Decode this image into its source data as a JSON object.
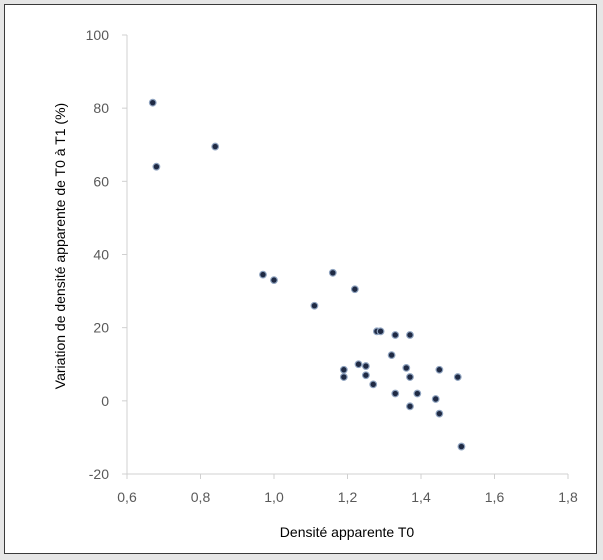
{
  "chart_data": {
    "type": "scatter",
    "title": "",
    "xlabel": "Densité apparente T0",
    "ylabel": "Variation de densité apparente de T0 à T1 (%)",
    "xlim": [
      0.6,
      1.8
    ],
    "ylim": [
      -20,
      100
    ],
    "x_ticks": [
      0.6,
      0.8,
      1.0,
      1.2,
      1.4,
      1.6,
      1.8
    ],
    "x_tick_labels": [
      "0,6",
      "0,8",
      "1,0",
      "1,2",
      "1,4",
      "1,6",
      "1,8"
    ],
    "y_ticks": [
      -20,
      0,
      20,
      40,
      60,
      80,
      100
    ],
    "y_tick_labels": [
      "-20",
      "0",
      "20",
      "40",
      "60",
      "80",
      "100"
    ],
    "grid": false,
    "legend": "none",
    "marker_color": "#1f2a44",
    "marker_edge_color": "#8fa3bf",
    "points": [
      {
        "x": 0.67,
        "y": 81.5
      },
      {
        "x": 0.68,
        "y": 64.0
      },
      {
        "x": 0.84,
        "y": 69.5
      },
      {
        "x": 0.97,
        "y": 34.5
      },
      {
        "x": 1.0,
        "y": 33.0
      },
      {
        "x": 1.11,
        "y": 26.0
      },
      {
        "x": 1.16,
        "y": 35.0
      },
      {
        "x": 1.22,
        "y": 30.5
      },
      {
        "x": 1.19,
        "y": 8.5
      },
      {
        "x": 1.19,
        "y": 6.5
      },
      {
        "x": 1.23,
        "y": 10.0
      },
      {
        "x": 1.25,
        "y": 9.5
      },
      {
        "x": 1.25,
        "y": 7.0
      },
      {
        "x": 1.27,
        "y": 4.5
      },
      {
        "x": 1.28,
        "y": 19.0
      },
      {
        "x": 1.29,
        "y": 19.0
      },
      {
        "x": 1.32,
        "y": 12.5
      },
      {
        "x": 1.33,
        "y": 18.0
      },
      {
        "x": 1.33,
        "y": 2.0
      },
      {
        "x": 1.36,
        "y": 9.0
      },
      {
        "x": 1.37,
        "y": 18.0
      },
      {
        "x": 1.37,
        "y": 6.5
      },
      {
        "x": 1.37,
        "y": -1.5
      },
      {
        "x": 1.39,
        "y": 2.0
      },
      {
        "x": 1.44,
        "y": 0.5
      },
      {
        "x": 1.45,
        "y": 8.5
      },
      {
        "x": 1.45,
        "y": -3.5
      },
      {
        "x": 1.5,
        "y": 6.5
      },
      {
        "x": 1.51,
        "y": -12.5
      }
    ]
  }
}
